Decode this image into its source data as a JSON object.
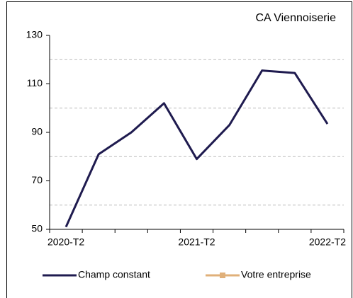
{
  "chart_data": {
    "type": "line",
    "title": "CA Viennoiserie",
    "categories": [
      "2020-T2",
      null,
      null,
      null,
      "2021-T2",
      null,
      null,
      null,
      "2022-T2"
    ],
    "series": [
      {
        "name": "Champ constant",
        "color": "#1f1b4f",
        "values": [
          51,
          81,
          90,
          102,
          79,
          93,
          115.5,
          114.5,
          93.5
        ]
      },
      {
        "name": "Votre entreprise",
        "color": "#e0b07a",
        "values": [
          null,
          null,
          null,
          null,
          null,
          null,
          null,
          null,
          null
        ]
      }
    ],
    "ylim": [
      50,
      130
    ],
    "yticks": [
      50,
      70,
      90,
      110,
      130
    ],
    "minor_grid": [
      60,
      80,
      100,
      120
    ],
    "grid": true
  }
}
